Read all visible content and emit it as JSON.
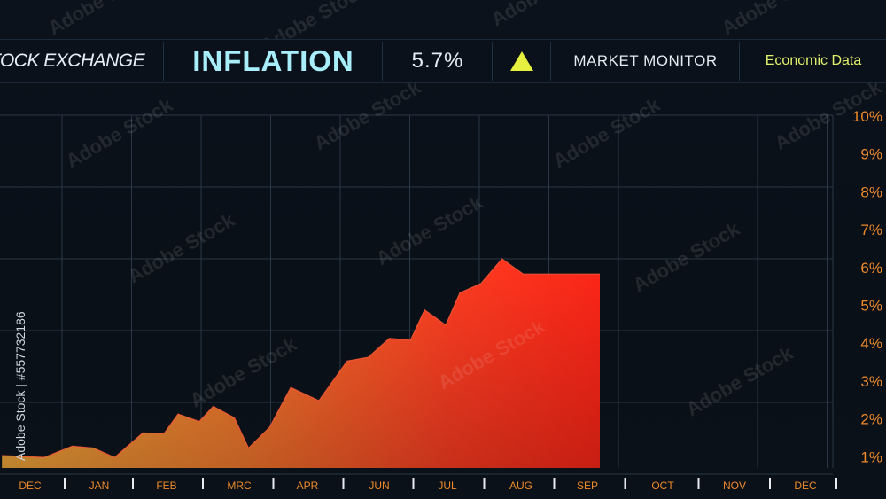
{
  "header": {
    "exchange_label": "TOCK EXCHANGE",
    "title": "INFLATION",
    "value": "5.7%",
    "trend_icon": "triangle-up-icon",
    "monitor_label": "MARKET MONITOR",
    "econ_label": "Economic Data"
  },
  "watermark": {
    "brand": "Adobe Stock",
    "id_text": "Adobe Stock | #557732186"
  },
  "colors": {
    "background": "#0b1119",
    "grid": "#2a3746",
    "title": "#a8eefa",
    "econ": "#e2f16a",
    "trend_icon": "#e7ef3f",
    "axis_labels": "#ee8a2a",
    "area_low": "#f0a53a",
    "area_high": "#ff2a1e"
  },
  "chart_data": {
    "type": "area",
    "x_labels": [
      "DEC",
      "JAN",
      "FEB",
      "MRC",
      "APR",
      "JUN",
      "JUL",
      "AUG",
      "SEP",
      "OCT",
      "NOV",
      "DEC"
    ],
    "y_labels": [
      "10%",
      "9%",
      "8%",
      "7%",
      "6%",
      "5%",
      "4%",
      "3%",
      "2%",
      "1%"
    ],
    "ylim": [
      0.7,
      10
    ],
    "xlim": [
      0,
      11
    ],
    "grid": true,
    "y_axis_side": "right",
    "series": [
      {
        "x": [
          -0.4,
          0.2,
          0.6,
          0.9,
          1.2,
          1.6,
          1.9,
          2.1,
          2.4,
          2.6,
          2.9,
          3.1,
          3.4,
          3.7,
          4.1,
          4.5,
          4.8,
          5.1,
          5.4,
          5.6,
          5.9,
          6.1,
          6.4,
          6.7,
          7.0,
          7.4,
          7.6,
          7.9,
          8.1,
          8.35
        ],
        "y": [
          1.0,
          0.95,
          1.25,
          1.2,
          0.95,
          1.6,
          1.58,
          2.1,
          1.9,
          2.3,
          2.0,
          1.2,
          1.75,
          2.8,
          2.45,
          3.5,
          3.6,
          4.1,
          4.05,
          4.85,
          4.45,
          5.3,
          5.55,
          6.2,
          5.8,
          5.8,
          5.8,
          5.8,
          5.8,
          5.8
        ]
      }
    ]
  }
}
